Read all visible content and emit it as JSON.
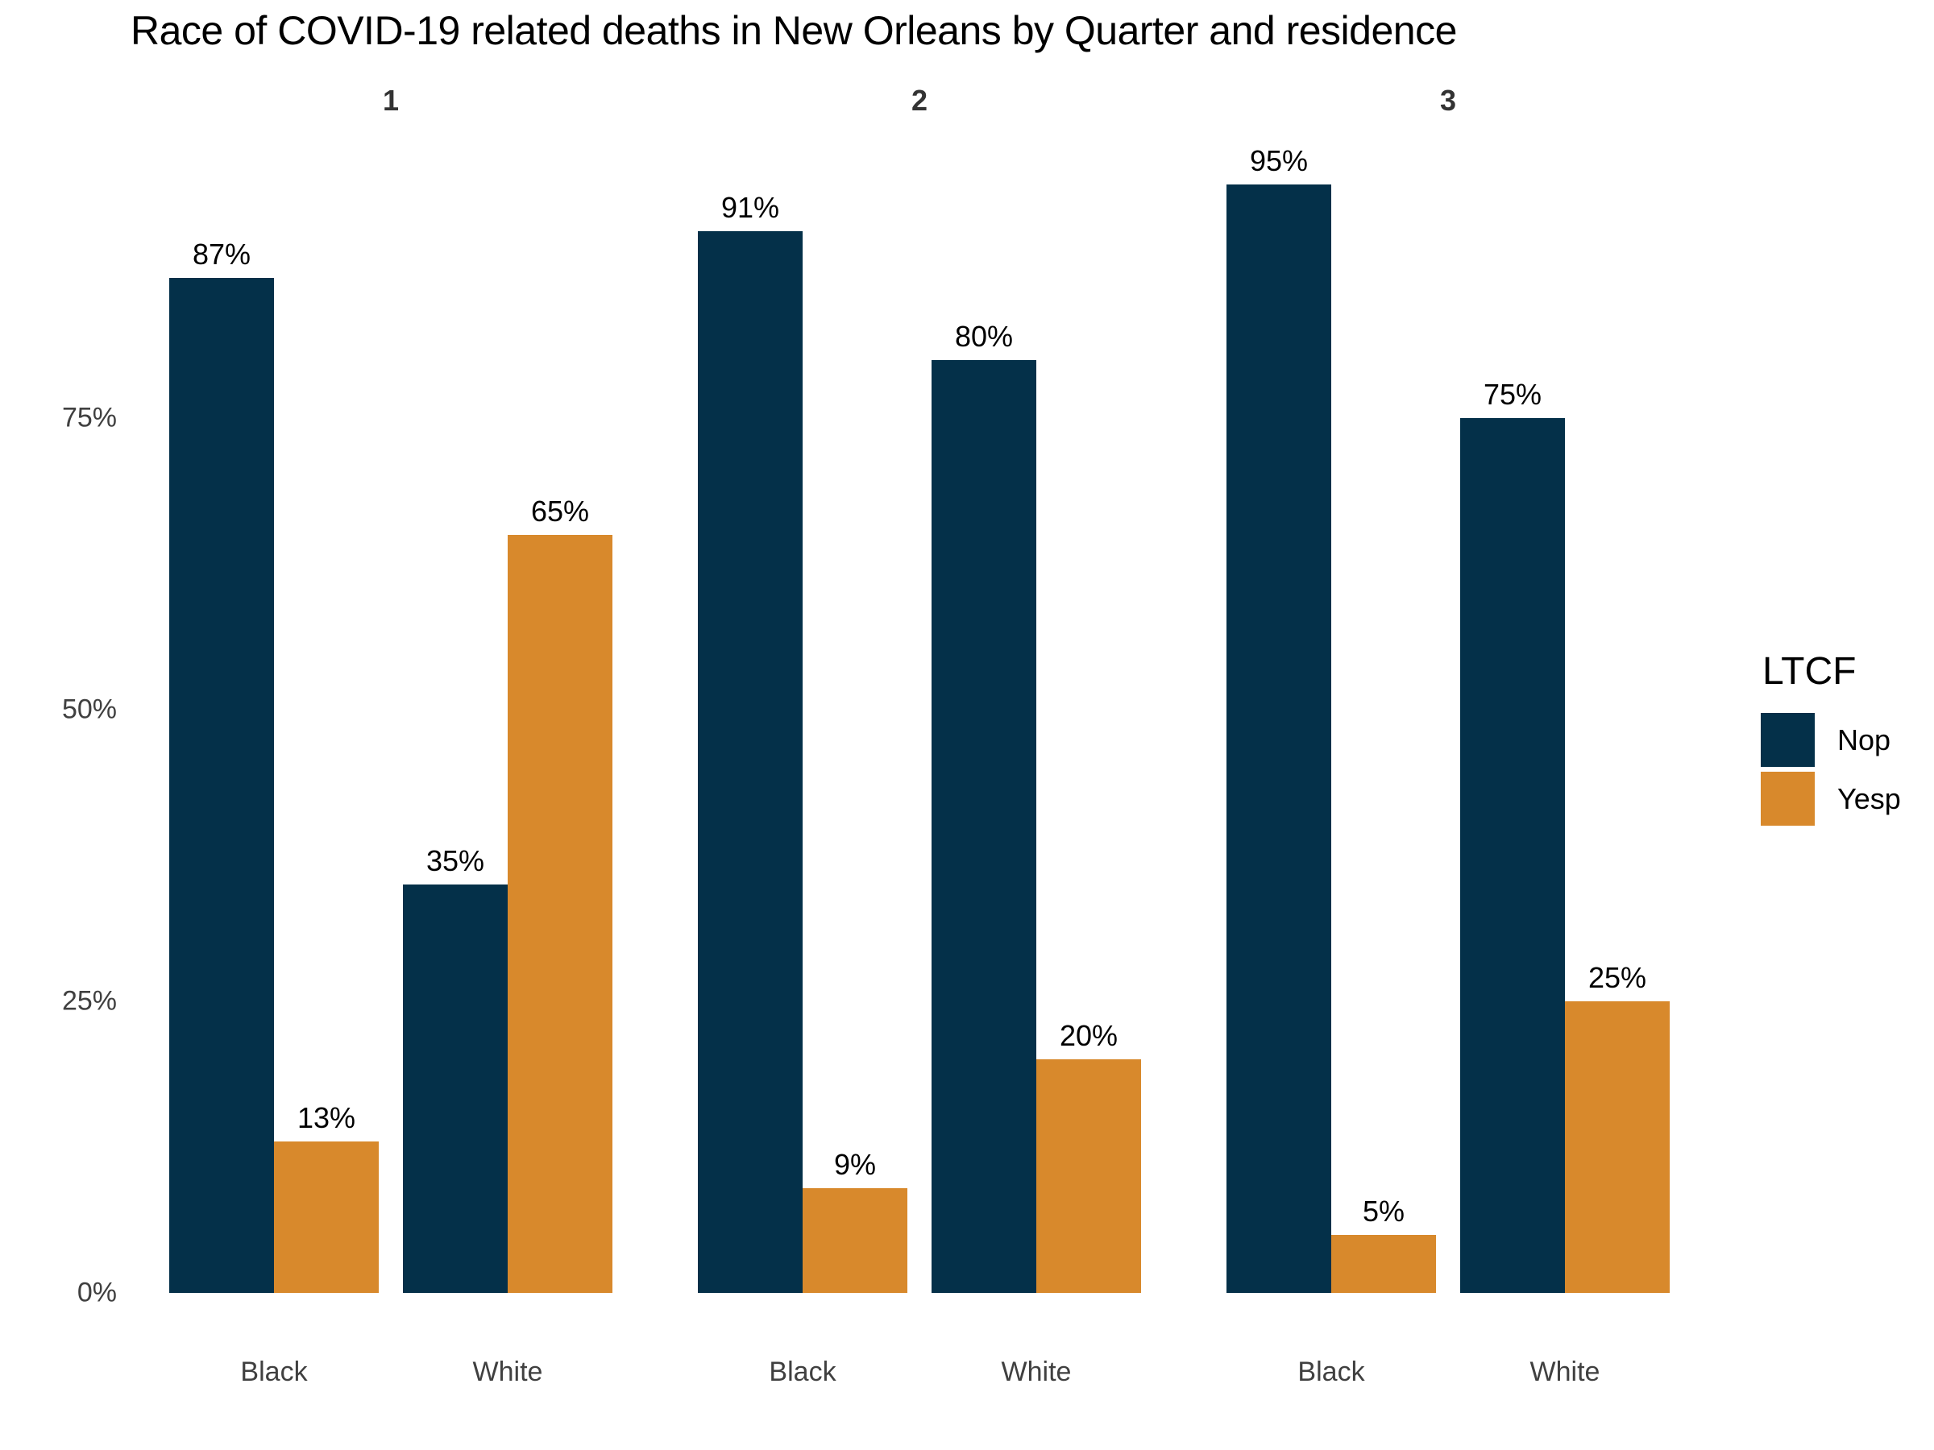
{
  "chart_data": {
    "type": "bar",
    "title": "Race of COVID-19 related deaths in New Orleans by Quarter and residence",
    "facet_variable_values": [
      "1",
      "2",
      "3"
    ],
    "categories": [
      "Black",
      "White"
    ],
    "legend_title": "LTCF",
    "series": [
      {
        "name": "Nop",
        "color": "#043049"
      },
      {
        "name": "Yesp",
        "color": "#D8892C"
      }
    ],
    "facets": [
      {
        "label": "1",
        "series": [
          {
            "name": "Nop",
            "values": [
              87,
              35
            ]
          },
          {
            "name": "Yesp",
            "values": [
              13,
              65
            ]
          }
        ]
      },
      {
        "label": "2",
        "series": [
          {
            "name": "Nop",
            "values": [
              91,
              80
            ]
          },
          {
            "name": "Yesp",
            "values": [
              9,
              20
            ]
          }
        ]
      },
      {
        "label": "3",
        "series": [
          {
            "name": "Nop",
            "values": [
              95,
              75
            ]
          },
          {
            "name": "Yesp",
            "values": [
              5,
              25
            ]
          }
        ]
      }
    ],
    "value_suffix": "%",
    "y_ticks": [
      {
        "label": "0%",
        "value": 0
      },
      {
        "label": "25%",
        "value": 25
      },
      {
        "label": "50%",
        "value": 50
      },
      {
        "label": "75%",
        "value": 75
      }
    ],
    "ylim": [
      0,
      100
    ],
    "grid": false,
    "axis_lines": false,
    "legend_position": "right",
    "background_color": "#ffffff",
    "text_colors": {
      "title": "#000000",
      "facet_label": "#333333",
      "axis_label": "#404040",
      "value_label": "#000000",
      "legend_text": "#000000"
    }
  }
}
